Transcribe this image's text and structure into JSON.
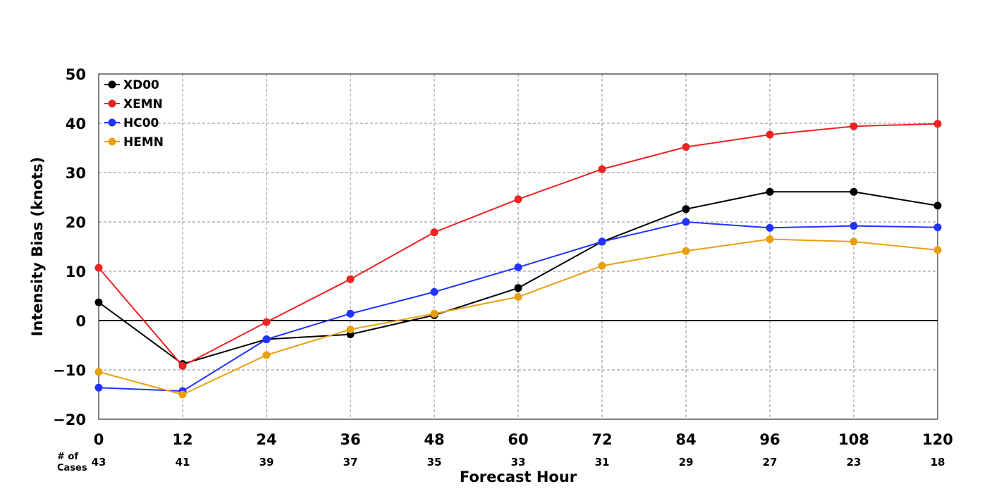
{
  "chart_data": {
    "type": "line",
    "xlabel": "Forecast Hour",
    "ylabel": "Intensity Bias (knots)",
    "x": [
      0,
      12,
      24,
      36,
      48,
      60,
      72,
      84,
      96,
      108,
      120
    ],
    "x_tick_labels": [
      "0",
      "12",
      "24",
      "36",
      "48",
      "60",
      "72",
      "84",
      "96",
      "108",
      "120"
    ],
    "xlim": [
      0,
      120
    ],
    "ylim": [
      -20,
      50
    ],
    "y_ticks": [
      -20,
      -10,
      0,
      10,
      20,
      30,
      40,
      50
    ],
    "y_tick_labels": [
      "−20",
      "−10",
      "0",
      "10",
      "20",
      "30",
      "40",
      "50"
    ],
    "grid": true,
    "legend_position": "top-left",
    "cases": {
      "title_line1": "# of",
      "title_line2": "Cases",
      "values": [
        "43",
        "41",
        "39",
        "37",
        "35",
        "33",
        "31",
        "29",
        "27",
        "23",
        "18"
      ]
    },
    "series": [
      {
        "name": "XD00",
        "color": "#000000",
        "values": [
          3.7,
          -8.8,
          -3.8,
          -2.8,
          1.1,
          6.6,
          16.0,
          22.6,
          26.1,
          26.1,
          23.3
        ]
      },
      {
        "name": "XEMN",
        "color": "#ee2222",
        "values": [
          10.7,
          -9.2,
          -0.3,
          8.4,
          17.9,
          24.6,
          30.7,
          35.2,
          37.7,
          39.4,
          39.9
        ]
      },
      {
        "name": "HC00",
        "color": "#2233ff",
        "values": [
          -13.6,
          -14.3,
          -3.8,
          1.4,
          5.8,
          10.8,
          16.0,
          20.0,
          18.8,
          19.2,
          18.9
        ]
      },
      {
        "name": "HEMN",
        "color": "#e8a010",
        "values": [
          -10.4,
          -15.0,
          -7.0,
          -1.8,
          1.4,
          4.8,
          11.1,
          14.1,
          16.5,
          16.0,
          14.3
        ]
      }
    ]
  }
}
